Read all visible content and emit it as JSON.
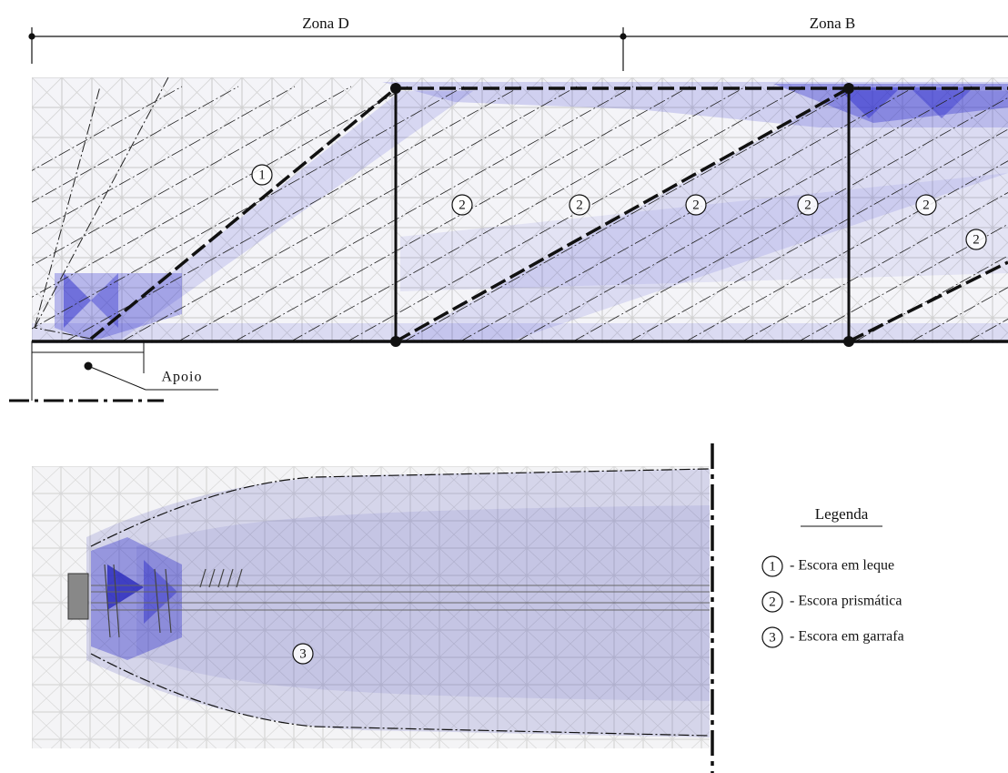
{
  "zones": [
    {
      "label": "Zona D"
    },
    {
      "label": "Zona B"
    }
  ],
  "support": {
    "label": "Apoio"
  },
  "markers": [
    {
      "label": "1"
    },
    {
      "label": "2"
    },
    {
      "label": "2"
    },
    {
      "label": "2"
    },
    {
      "label": "2"
    },
    {
      "label": "2"
    },
    {
      "label": "2"
    },
    {
      "label": "3"
    }
  ],
  "legend": {
    "title": "Legenda",
    "items": [
      {
        "marker": "1",
        "text": "- Escora em leque"
      },
      {
        "marker": "2",
        "text": "- Escora prismática"
      },
      {
        "marker": "3",
        "text": "- Escora em garrafa"
      }
    ]
  }
}
